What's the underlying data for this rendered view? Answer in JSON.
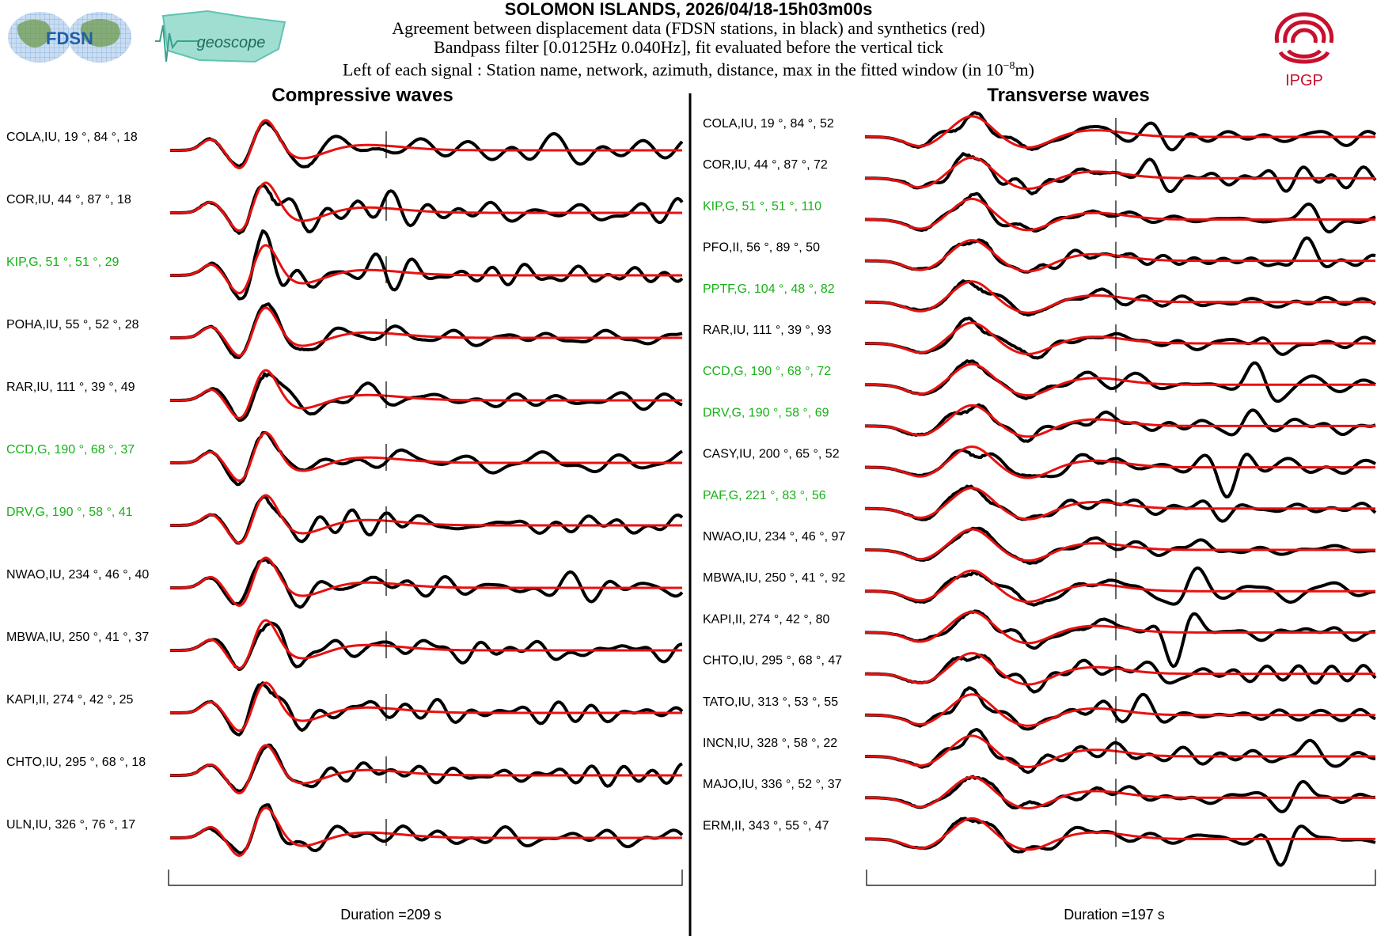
{
  "header": {
    "title": "SOLOMON ISLANDS, 2026/04/18-15h03m00s",
    "line1": "Agreement between displacement data (FDSN stations, in black) and synthetics (red)",
    "line2": "Bandpass filter [0.0125Hz 0.040Hz], fit evaluated before the vertical tick",
    "line3_pre": "Left of each signal : Station name, network, azimuth, distance, max in the fitted window (in 10",
    "line3_exp": "−8",
    "line3_post": "m)"
  },
  "logos": {
    "fdsn": "FDSN",
    "geoscope": "geoscope",
    "ipgp": "IPGP"
  },
  "colors": {
    "data": "#000000",
    "synthetic": "#e81010",
    "highlight": "#17b217",
    "normal_label": "#000000",
    "ipgp": "#c8102e",
    "fdsn_blue": "#1f5fa8",
    "geoscope_teal": "#5fc4b0"
  },
  "chart_data": [
    {
      "type": "line",
      "title": "Compressive waves",
      "duration_label": "Duration =209 s",
      "duration_s": 209,
      "series_names": [
        "data",
        "synthetics"
      ],
      "stations": [
        {
          "label": "COLA,IU, 19 °, 84 °, 18",
          "station": "COLA",
          "network": "IU",
          "azimuth": 19,
          "distance": 84,
          "max": 18,
          "highlight": false
        },
        {
          "label": "COR,IU, 44 °, 87 °, 18",
          "station": "COR",
          "network": "IU",
          "azimuth": 44,
          "distance": 87,
          "max": 18,
          "highlight": false
        },
        {
          "label": "KIP,G, 51 °, 51 °, 29",
          "station": "KIP",
          "network": "G",
          "azimuth": 51,
          "distance": 51,
          "max": 29,
          "highlight": true
        },
        {
          "label": "POHA,IU, 55 °, 52 °, 28",
          "station": "POHA",
          "network": "IU",
          "azimuth": 55,
          "distance": 52,
          "max": 28,
          "highlight": false
        },
        {
          "label": "RAR,IU, 111 °, 39 °, 49",
          "station": "RAR",
          "network": "IU",
          "azimuth": 111,
          "distance": 39,
          "max": 49,
          "highlight": false
        },
        {
          "label": "CCD,G, 190 °, 68 °, 37",
          "station": "CCD",
          "network": "G",
          "azimuth": 190,
          "distance": 68,
          "max": 37,
          "highlight": true
        },
        {
          "label": "DRV,G, 190 °, 58 °, 41",
          "station": "DRV",
          "network": "G",
          "azimuth": 190,
          "distance": 58,
          "max": 41,
          "highlight": true
        },
        {
          "label": "NWAO,IU, 234 °, 46 °, 40",
          "station": "NWAO",
          "network": "IU",
          "azimuth": 234,
          "distance": 46,
          "max": 40,
          "highlight": false
        },
        {
          "label": "MBWA,IU, 250 °, 41 °, 37",
          "station": "MBWA",
          "network": "IU",
          "azimuth": 250,
          "distance": 41,
          "max": 37,
          "highlight": false
        },
        {
          "label": "KAPI,II, 274 °, 42 °, 25",
          "station": "KAPI",
          "network": "II",
          "azimuth": 274,
          "distance": 42,
          "max": 25,
          "highlight": false
        },
        {
          "label": "CHTO,IU, 295 °, 68 °, 18",
          "station": "CHTO",
          "network": "IU",
          "azimuth": 295,
          "distance": 68,
          "max": 18,
          "highlight": false
        },
        {
          "label": "ULN,IU, 326 °, 76 °, 17",
          "station": "ULN",
          "network": "IU",
          "azimuth": 326,
          "distance": 76,
          "max": 17,
          "highlight": false
        }
      ]
    },
    {
      "type": "line",
      "title": "Transverse waves",
      "duration_label": "Duration =197 s",
      "duration_s": 197,
      "series_names": [
        "data",
        "synthetics"
      ],
      "stations": [
        {
          "label": "COLA,IU, 19 °, 84 °, 52",
          "station": "COLA",
          "network": "IU",
          "azimuth": 19,
          "distance": 84,
          "max": 52,
          "highlight": false
        },
        {
          "label": "COR,IU, 44 °, 87 °, 72",
          "station": "COR",
          "network": "IU",
          "azimuth": 44,
          "distance": 87,
          "max": 72,
          "highlight": false
        },
        {
          "label": "KIP,G, 51 °, 51 °, 110",
          "station": "KIP",
          "network": "G",
          "azimuth": 51,
          "distance": 51,
          "max": 110,
          "highlight": true
        },
        {
          "label": "PFO,II, 56 °, 89 °, 50",
          "station": "PFO",
          "network": "II",
          "azimuth": 56,
          "distance": 89,
          "max": 50,
          "highlight": false
        },
        {
          "label": "PPTF,G, 104 °, 48 °, 82",
          "station": "PPTF",
          "network": "G",
          "azimuth": 104,
          "distance": 48,
          "max": 82,
          "highlight": true
        },
        {
          "label": "RAR,IU, 111 °, 39 °, 93",
          "station": "RAR",
          "network": "IU",
          "azimuth": 111,
          "distance": 39,
          "max": 93,
          "highlight": false
        },
        {
          "label": "CCD,G, 190 °, 68 °, 72",
          "station": "CCD",
          "network": "G",
          "azimuth": 190,
          "distance": 68,
          "max": 72,
          "highlight": true
        },
        {
          "label": "DRV,G, 190 °, 58 °, 69",
          "station": "DRV",
          "network": "G",
          "azimuth": 190,
          "distance": 58,
          "max": 69,
          "highlight": true
        },
        {
          "label": "CASY,IU, 200 °, 65 °, 52",
          "station": "CASY",
          "network": "IU",
          "azimuth": 200,
          "distance": 65,
          "max": 52,
          "highlight": false
        },
        {
          "label": "PAF,G, 221 °, 83 °, 56",
          "station": "PAF",
          "network": "G",
          "azimuth": 221,
          "distance": 83,
          "max": 56,
          "highlight": true
        },
        {
          "label": "NWAO,IU, 234 °, 46 °, 97",
          "station": "NWAO",
          "network": "IU",
          "azimuth": 234,
          "distance": 46,
          "max": 97,
          "highlight": false
        },
        {
          "label": "MBWA,IU, 250 °, 41 °, 92",
          "station": "MBWA",
          "network": "IU",
          "azimuth": 250,
          "distance": 41,
          "max": 92,
          "highlight": false
        },
        {
          "label": "KAPI,II, 274 °, 42 °, 80",
          "station": "KAPI",
          "network": "II",
          "azimuth": 274,
          "distance": 42,
          "max": 80,
          "highlight": false
        },
        {
          "label": "CHTO,IU, 295 °, 68 °, 47",
          "station": "CHTO",
          "network": "IU",
          "azimuth": 295,
          "distance": 68,
          "max": 47,
          "highlight": false
        },
        {
          "label": "TATO,IU, 313 °, 53 °, 55",
          "station": "TATO",
          "network": "IU",
          "azimuth": 313,
          "distance": 53,
          "max": 55,
          "highlight": false
        },
        {
          "label": "INCN,IU, 328 °, 58 °, 22",
          "station": "INCN",
          "network": "IU",
          "azimuth": 328,
          "distance": 58,
          "max": 22,
          "highlight": false
        },
        {
          "label": "MAJO,IU, 336 °, 52 °, 37",
          "station": "MAJO",
          "network": "IU",
          "azimuth": 336,
          "distance": 52,
          "max": 37,
          "highlight": false
        },
        {
          "label": "ERM,II, 343 °, 55 °, 47",
          "station": "ERM",
          "network": "II",
          "azimuth": 343,
          "distance": 55,
          "max": 47,
          "highlight": false
        }
      ]
    }
  ]
}
